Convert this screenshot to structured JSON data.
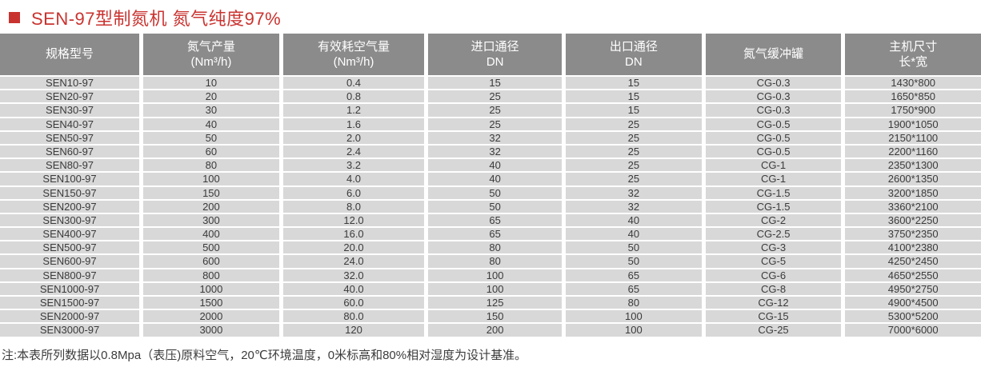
{
  "title": {
    "text": "SEN-97型制氮机 氮气纯度97%",
    "color": "#c9332f",
    "bullet_color": "#c9332f",
    "bullet_icon": "red-square"
  },
  "table": {
    "header_bg": "#8b8b8b",
    "header_text_color": "#ffffff",
    "row_bg": "#d8d8d8",
    "row_text_color": "#3b3b3b",
    "columns": [
      {
        "line1": "规格型号",
        "line2": ""
      },
      {
        "line1": "氮气产量",
        "line2": "(Nm³/h)"
      },
      {
        "line1": "有效耗空气量",
        "line2": "(Nm³/h)"
      },
      {
        "line1": "进口通径",
        "line2": "DN"
      },
      {
        "line1": "出口通径",
        "line2": "DN"
      },
      {
        "line1": "氮气缓冲罐",
        "line2": ""
      },
      {
        "line1": "主机尺寸",
        "line2": "长*宽"
      }
    ],
    "rows": [
      [
        "SEN10-97",
        "10",
        "0.4",
        "15",
        "15",
        "CG-0.3",
        "1430*800"
      ],
      [
        "SEN20-97",
        "20",
        "0.8",
        "25",
        "15",
        "CG-0.3",
        "1650*850"
      ],
      [
        "SEN30-97",
        "30",
        "1.2",
        "25",
        "15",
        "CG-0.3",
        "1750*900"
      ],
      [
        "SEN40-97",
        "40",
        "1.6",
        "25",
        "25",
        "CG-0.5",
        "1900*1050"
      ],
      [
        "SEN50-97",
        "50",
        "2.0",
        "32",
        "25",
        "CG-0.5",
        "2150*1100"
      ],
      [
        "SEN60-97",
        "60",
        "2.4",
        "32",
        "25",
        "CG-0.5",
        "2200*1160"
      ],
      [
        "SEN80-97",
        "80",
        "3.2",
        "40",
        "25",
        "CG-1",
        "2350*1300"
      ],
      [
        "SEN100-97",
        "100",
        "4.0",
        "40",
        "25",
        "CG-1",
        "2600*1350"
      ],
      [
        "SEN150-97",
        "150",
        "6.0",
        "50",
        "32",
        "CG-1.5",
        "3200*1850"
      ],
      [
        "SEN200-97",
        "200",
        "8.0",
        "50",
        "32",
        "CG-1.5",
        "3360*2100"
      ],
      [
        "SEN300-97",
        "300",
        "12.0",
        "65",
        "40",
        "CG-2",
        "3600*2250"
      ],
      [
        "SEN400-97",
        "400",
        "16.0",
        "65",
        "40",
        "CG-2.5",
        "3750*2350"
      ],
      [
        "SEN500-97",
        "500",
        "20.0",
        "80",
        "50",
        "CG-3",
        "4100*2380"
      ],
      [
        "SEN600-97",
        "600",
        "24.0",
        "80",
        "50",
        "CG-5",
        "4250*2450"
      ],
      [
        "SEN800-97",
        "800",
        "32.0",
        "100",
        "65",
        "CG-6",
        "4650*2550"
      ],
      [
        "SEN1000-97",
        "1000",
        "40.0",
        "100",
        "65",
        "CG-8",
        "4950*2750"
      ],
      [
        "SEN1500-97",
        "1500",
        "60.0",
        "125",
        "80",
        "CG-12",
        "4900*4500"
      ],
      [
        "SEN2000-97",
        "2000",
        "80.0",
        "150",
        "100",
        "CG-15",
        "5300*5200"
      ],
      [
        "SEN3000-97",
        "3000",
        "120",
        "200",
        "100",
        "CG-25",
        "7000*6000"
      ]
    ]
  },
  "note": {
    "text": "注:本表所列数据以0.8Mpa（表压)原料空气，20℃环境温度，0米标高和80%相对湿度为设计基准。"
  }
}
